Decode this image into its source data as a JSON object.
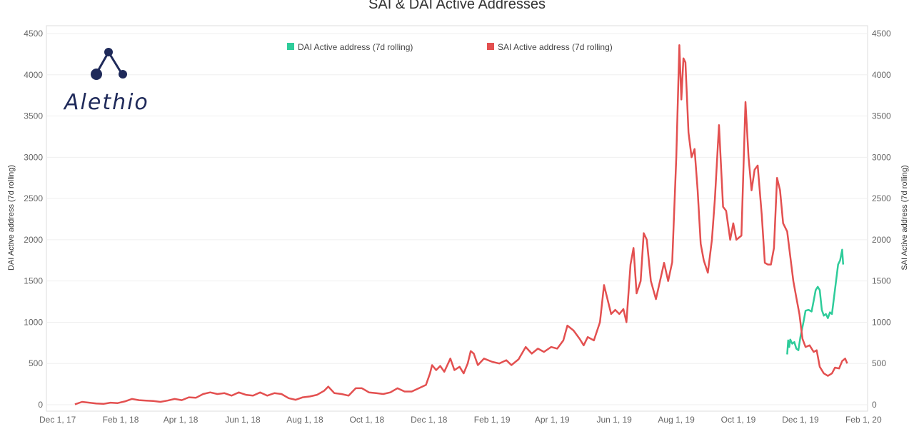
{
  "chart_data": {
    "type": "line",
    "title": "SAI & DAI Active Addresses",
    "ylabel_left": "DAI Active address (7d rolling)",
    "ylabel_right": "SAI Active address (7d rolling)",
    "ylim": [
      0,
      4500
    ],
    "yticks": [
      0,
      500,
      1000,
      1500,
      2000,
      2500,
      3000,
      3500,
      4000,
      4500
    ],
    "xlim": [
      "2017-11-20",
      "2020-02-05"
    ],
    "xticks": [
      {
        "date": "2017-12-01",
        "label": "Dec 1, 17"
      },
      {
        "date": "2018-02-01",
        "label": "Feb 1, 18"
      },
      {
        "date": "2018-04-01",
        "label": "Apr 1, 18"
      },
      {
        "date": "2018-06-01",
        "label": "Jun 1, 18"
      },
      {
        "date": "2018-08-01",
        "label": "Aug 1, 18"
      },
      {
        "date": "2018-10-01",
        "label": "Oct 1, 18"
      },
      {
        "date": "2018-12-01",
        "label": "Dec 1, 18"
      },
      {
        "date": "2019-02-01",
        "label": "Feb 1, 19"
      },
      {
        "date": "2019-04-01",
        "label": "Apr 1, 19"
      },
      {
        "date": "2019-06-01",
        "label": "Jun 1, 19"
      },
      {
        "date": "2019-08-01",
        "label": "Aug 1, 19"
      },
      {
        "date": "2019-10-01",
        "label": "Oct 1, 19"
      },
      {
        "date": "2019-12-01",
        "label": "Dec 1, 19"
      },
      {
        "date": "2020-02-01",
        "label": "Feb 1, 20"
      }
    ],
    "legend_placement": "top",
    "grid": true,
    "series": [
      {
        "name": "DAI Active address (7d rolling)",
        "color": "#2ecc9a",
        "points": [
          [
            "2019-11-18",
            610
          ],
          [
            "2019-11-19",
            780
          ],
          [
            "2019-11-20",
            700
          ],
          [
            "2019-11-21",
            790
          ],
          [
            "2019-11-23",
            740
          ],
          [
            "2019-11-25",
            760
          ],
          [
            "2019-11-27",
            680
          ],
          [
            "2019-11-29",
            660
          ],
          [
            "2019-12-01",
            820
          ],
          [
            "2019-12-04",
            1000
          ],
          [
            "2019-12-06",
            1140
          ],
          [
            "2019-12-09",
            1150
          ],
          [
            "2019-12-12",
            1130
          ],
          [
            "2019-12-14",
            1260
          ],
          [
            "2019-12-16",
            1390
          ],
          [
            "2019-12-18",
            1430
          ],
          [
            "2019-12-20",
            1390
          ],
          [
            "2019-12-22",
            1150
          ],
          [
            "2019-12-24",
            1080
          ],
          [
            "2019-12-26",
            1100
          ],
          [
            "2019-12-28",
            1050
          ],
          [
            "2019-12-30",
            1120
          ],
          [
            "2020-01-01",
            1100
          ],
          [
            "2020-01-04",
            1400
          ],
          [
            "2020-01-07",
            1700
          ],
          [
            "2020-01-09",
            1750
          ],
          [
            "2020-01-11",
            1880
          ],
          [
            "2020-01-12",
            1700
          ]
        ]
      },
      {
        "name": "SAI Active address (7d rolling)",
        "color": "#e35050",
        "points": [
          [
            "2017-12-18",
            5
          ],
          [
            "2017-12-25",
            35
          ],
          [
            "2018-01-01",
            25
          ],
          [
            "2018-01-08",
            15
          ],
          [
            "2018-01-15",
            10
          ],
          [
            "2018-01-22",
            25
          ],
          [
            "2018-01-29",
            20
          ],
          [
            "2018-02-05",
            40
          ],
          [
            "2018-02-12",
            70
          ],
          [
            "2018-02-19",
            55
          ],
          [
            "2018-02-26",
            50
          ],
          [
            "2018-03-05",
            45
          ],
          [
            "2018-03-12",
            35
          ],
          [
            "2018-03-19",
            50
          ],
          [
            "2018-03-26",
            70
          ],
          [
            "2018-04-02",
            55
          ],
          [
            "2018-04-09",
            90
          ],
          [
            "2018-04-16",
            85
          ],
          [
            "2018-04-23",
            130
          ],
          [
            "2018-04-30",
            150
          ],
          [
            "2018-05-07",
            130
          ],
          [
            "2018-05-14",
            140
          ],
          [
            "2018-05-21",
            110
          ],
          [
            "2018-05-28",
            150
          ],
          [
            "2018-06-04",
            120
          ],
          [
            "2018-06-11",
            110
          ],
          [
            "2018-06-18",
            150
          ],
          [
            "2018-06-25",
            110
          ],
          [
            "2018-07-02",
            140
          ],
          [
            "2018-07-09",
            130
          ],
          [
            "2018-07-16",
            80
          ],
          [
            "2018-07-23",
            60
          ],
          [
            "2018-07-30",
            90
          ],
          [
            "2018-08-06",
            100
          ],
          [
            "2018-08-13",
            120
          ],
          [
            "2018-08-20",
            170
          ],
          [
            "2018-08-24",
            220
          ],
          [
            "2018-08-30",
            140
          ],
          [
            "2018-09-06",
            130
          ],
          [
            "2018-09-13",
            110
          ],
          [
            "2018-09-20",
            200
          ],
          [
            "2018-09-26",
            200
          ],
          [
            "2018-10-03",
            150
          ],
          [
            "2018-10-10",
            140
          ],
          [
            "2018-10-17",
            130
          ],
          [
            "2018-10-24",
            150
          ],
          [
            "2018-10-31",
            200
          ],
          [
            "2018-11-07",
            160
          ],
          [
            "2018-11-14",
            160
          ],
          [
            "2018-11-21",
            200
          ],
          [
            "2018-11-28",
            240
          ],
          [
            "2018-12-02",
            380
          ],
          [
            "2018-12-04",
            480
          ],
          [
            "2018-12-08",
            420
          ],
          [
            "2018-12-12",
            470
          ],
          [
            "2018-12-16",
            400
          ],
          [
            "2018-12-22",
            560
          ],
          [
            "2018-12-26",
            420
          ],
          [
            "2018-12-31",
            460
          ],
          [
            "2019-01-04",
            380
          ],
          [
            "2019-01-08",
            500
          ],
          [
            "2019-01-11",
            650
          ],
          [
            "2019-01-14",
            620
          ],
          [
            "2019-01-18",
            480
          ],
          [
            "2019-01-24",
            560
          ],
          [
            "2019-02-01",
            520
          ],
          [
            "2019-02-08",
            500
          ],
          [
            "2019-02-15",
            540
          ],
          [
            "2019-02-20",
            480
          ],
          [
            "2019-02-27",
            550
          ],
          [
            "2019-03-06",
            700
          ],
          [
            "2019-03-12",
            620
          ],
          [
            "2019-03-18",
            680
          ],
          [
            "2019-03-24",
            640
          ],
          [
            "2019-03-31",
            700
          ],
          [
            "2019-04-06",
            680
          ],
          [
            "2019-04-12",
            780
          ],
          [
            "2019-04-16",
            960
          ],
          [
            "2019-04-22",
            900
          ],
          [
            "2019-04-28",
            800
          ],
          [
            "2019-05-02",
            720
          ],
          [
            "2019-05-06",
            820
          ],
          [
            "2019-05-12",
            780
          ],
          [
            "2019-05-18",
            1000
          ],
          [
            "2019-05-22",
            1450
          ],
          [
            "2019-05-26",
            1250
          ],
          [
            "2019-05-29",
            1100
          ],
          [
            "2019-06-02",
            1150
          ],
          [
            "2019-06-06",
            1100
          ],
          [
            "2019-06-10",
            1160
          ],
          [
            "2019-06-13",
            1000
          ],
          [
            "2019-06-17",
            1700
          ],
          [
            "2019-06-20",
            1900
          ],
          [
            "2019-06-23",
            1350
          ],
          [
            "2019-06-27",
            1500
          ],
          [
            "2019-06-30",
            2080
          ],
          [
            "2019-07-03",
            2000
          ],
          [
            "2019-07-07",
            1500
          ],
          [
            "2019-07-12",
            1280
          ],
          [
            "2019-07-16",
            1500
          ],
          [
            "2019-07-20",
            1720
          ],
          [
            "2019-07-24",
            1500
          ],
          [
            "2019-07-28",
            1730
          ],
          [
            "2019-08-01",
            3000
          ],
          [
            "2019-08-04",
            4360
          ],
          [
            "2019-08-06",
            3700
          ],
          [
            "2019-08-08",
            4200
          ],
          [
            "2019-08-10",
            4150
          ],
          [
            "2019-08-13",
            3300
          ],
          [
            "2019-08-16",
            3000
          ],
          [
            "2019-08-19",
            3100
          ],
          [
            "2019-08-22",
            2600
          ],
          [
            "2019-08-25",
            1950
          ],
          [
            "2019-08-28",
            1750
          ],
          [
            "2019-09-01",
            1600
          ],
          [
            "2019-09-05",
            2000
          ],
          [
            "2019-09-08",
            2500
          ],
          [
            "2019-09-12",
            3390
          ],
          [
            "2019-09-16",
            2400
          ],
          [
            "2019-09-19",
            2350
          ],
          [
            "2019-09-23",
            2000
          ],
          [
            "2019-09-26",
            2200
          ],
          [
            "2019-09-29",
            2000
          ],
          [
            "2019-10-04",
            2050
          ],
          [
            "2019-10-08",
            3670
          ],
          [
            "2019-10-11",
            3000
          ],
          [
            "2019-10-14",
            2600
          ],
          [
            "2019-10-17",
            2850
          ],
          [
            "2019-10-20",
            2900
          ],
          [
            "2019-10-24",
            2300
          ],
          [
            "2019-10-27",
            1720
          ],
          [
            "2019-10-30",
            1700
          ],
          [
            "2019-11-02",
            1700
          ],
          [
            "2019-11-05",
            1900
          ],
          [
            "2019-11-08",
            2750
          ],
          [
            "2019-11-11",
            2600
          ],
          [
            "2019-11-14",
            2200
          ],
          [
            "2019-11-18",
            2100
          ],
          [
            "2019-11-21",
            1800
          ],
          [
            "2019-11-24",
            1500
          ],
          [
            "2019-11-27",
            1300
          ],
          [
            "2019-11-30",
            1100
          ],
          [
            "2019-12-03",
            800
          ],
          [
            "2019-12-06",
            700
          ],
          [
            "2019-12-10",
            720
          ],
          [
            "2019-12-14",
            640
          ],
          [
            "2019-12-17",
            660
          ],
          [
            "2019-12-20",
            460
          ],
          [
            "2019-12-24",
            380
          ],
          [
            "2019-12-28",
            350
          ],
          [
            "2020-01-01",
            380
          ],
          [
            "2020-01-04",
            450
          ],
          [
            "2020-01-08",
            440
          ],
          [
            "2020-01-11",
            530
          ],
          [
            "2020-01-14",
            560
          ],
          [
            "2020-01-16",
            500
          ]
        ]
      }
    ]
  },
  "logo": {
    "text": "Alethio",
    "color": "#1f2a5a"
  }
}
